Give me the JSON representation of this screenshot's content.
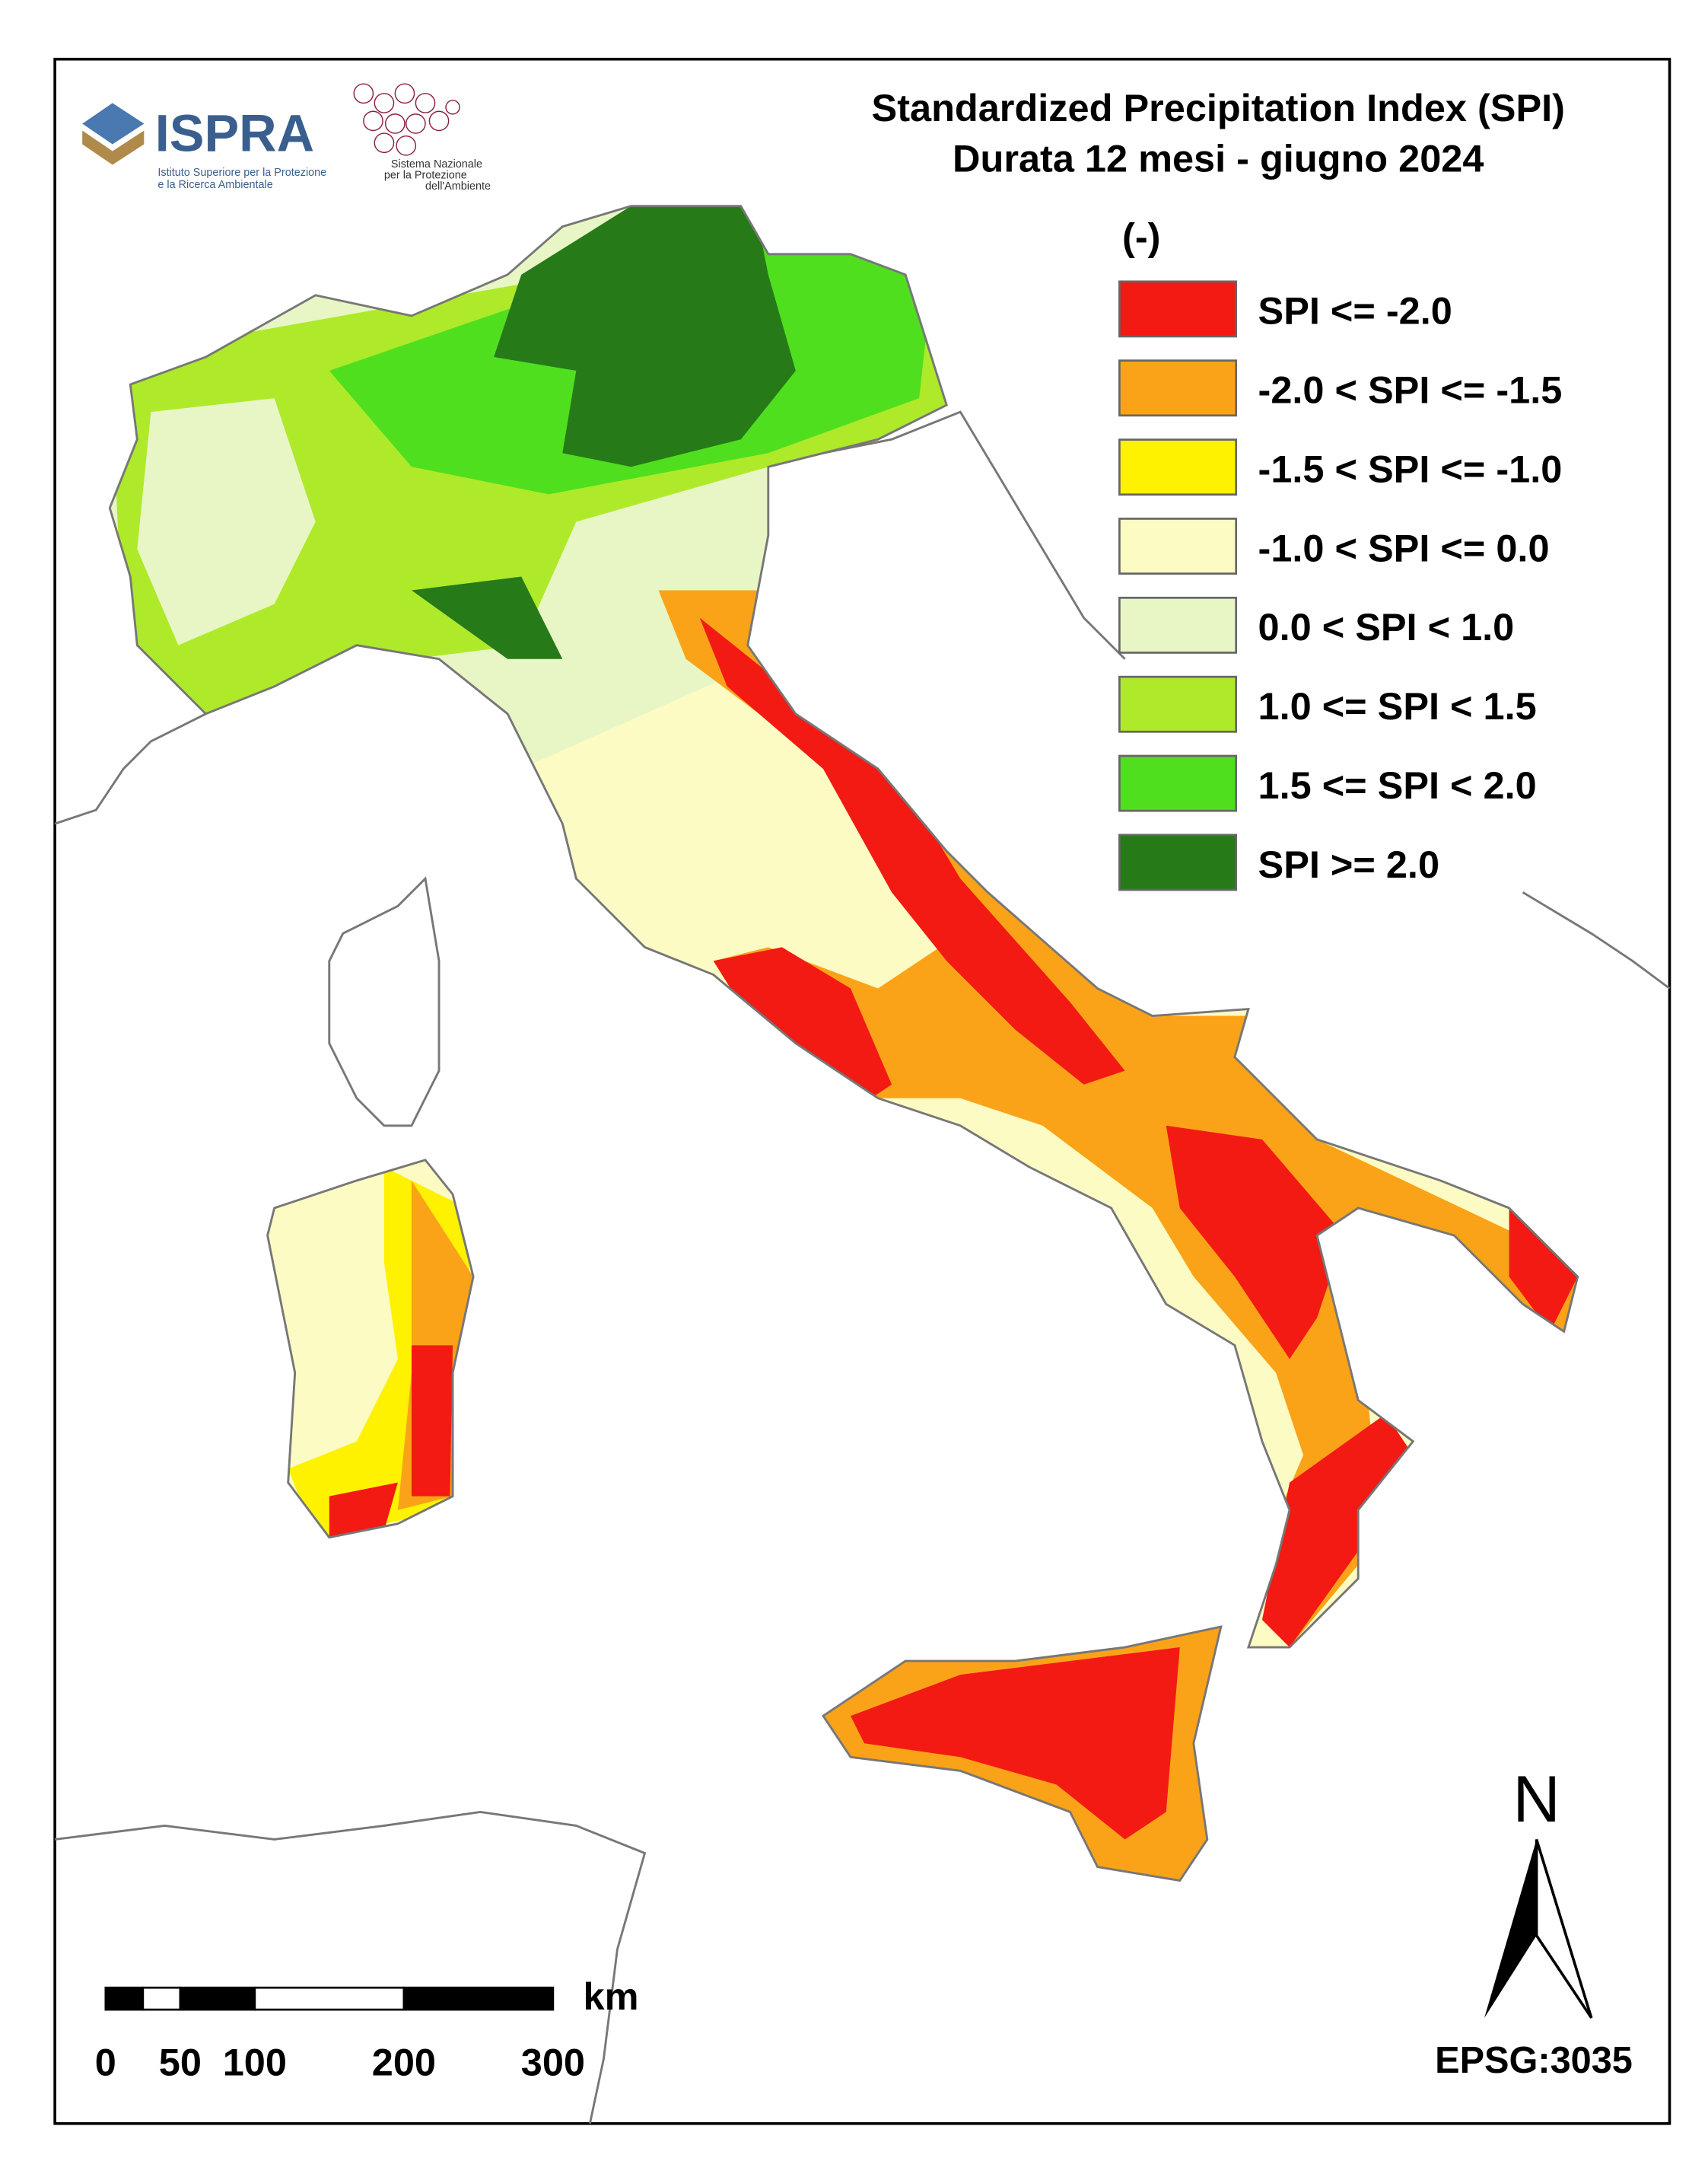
{
  "header": {
    "title": "Standardized Precipitation Index (SPI)",
    "subtitle": "Durata 12 mesi - giugno 2024"
  },
  "logos": {
    "ispra": "ISPRA",
    "ispra_line1": "Istituto Superiore per la Protezione",
    "ispra_line2": "e la Ricerca Ambientale",
    "snpa_line1": "Sistema Nazionale",
    "snpa_line2": "per la Protezione",
    "snpa_line3": "dell'Ambiente"
  },
  "legend": {
    "unit": "(-)",
    "items": [
      {
        "label": "SPI <= -2.0",
        "color": "#f21a12"
      },
      {
        "label": "-2.0 < SPI <= -1.5",
        "color": "#fba318"
      },
      {
        "label": "-1.5 < SPI <= -1.0",
        "color": "#fff200"
      },
      {
        "label": "-1.0 < SPI <= 0.0",
        "color": "#fdfbc4"
      },
      {
        "label": "0.0 < SPI < 1.0",
        "color": "#e8f6c6"
      },
      {
        "label": "1.0 <= SPI < 1.5",
        "color": "#aeea2a"
      },
      {
        "label": "1.5 <= SPI < 2.0",
        "color": "#4fdf1f"
      },
      {
        "label": "SPI >= 2.0",
        "color": "#267a18"
      }
    ]
  },
  "scale_bar": {
    "unit": "km",
    "ticks": [
      0,
      50,
      100,
      200,
      300
    ]
  },
  "north": "N",
  "crs": "EPSG:3035"
}
